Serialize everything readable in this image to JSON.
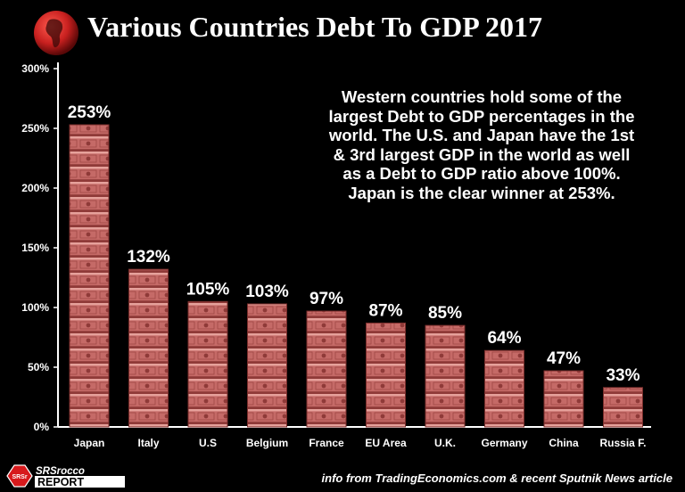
{
  "chart_data": {
    "type": "bar",
    "title": "Various Countries Debt To GDP 2017",
    "xlabel": "",
    "ylabel": "",
    "ylim": [
      0,
      300
    ],
    "y_ticks": [
      "0%",
      "50%",
      "100%",
      "150%",
      "200%",
      "250%",
      "300%"
    ],
    "y_tick_values": [
      0,
      50,
      100,
      150,
      200,
      250,
      300
    ],
    "categories": [
      "Japan",
      "Italy",
      "U.S",
      "Belgium",
      "France",
      "EU Area",
      "U.K.",
      "Germany",
      "China",
      "Russia F."
    ],
    "values": [
      253,
      132,
      105,
      103,
      97,
      87,
      85,
      64,
      47,
      33
    ],
    "data_labels": [
      "253%",
      "132%",
      "105%",
      "103%",
      "97%",
      "87%",
      "85%",
      "64%",
      "47%",
      "33%"
    ],
    "annotation": [
      "Western countries hold some of the",
      "largest Debt to GDP percentages in the",
      "world.  The U.S. and Japan have the 1st",
      "& 3rd largest GDP in the world as well",
      "as a Debt to GDP ratio above 100%.",
      "Japan is the clear winner at 253%."
    ],
    "source": "info from TradingEconomics.com & recent Sputnik News article"
  },
  "logo": {
    "top": "SRSrocco",
    "bottom": "REPORT",
    "badge": "SRSr"
  },
  "colors": {
    "background": "#000000",
    "bar_fill": "#c56a67",
    "bar_stripe": "#8f3a38",
    "bar_highlight": "#e6a19b",
    "globe_red": "#c8201f",
    "logo_red": "#d7191c"
  }
}
